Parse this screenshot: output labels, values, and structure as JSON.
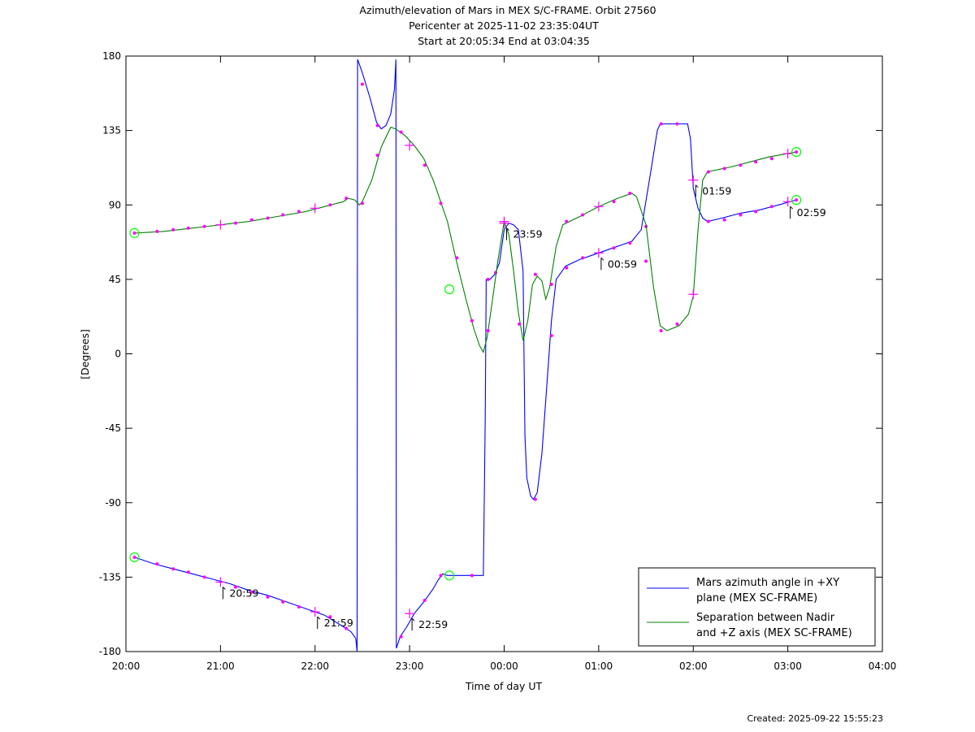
{
  "chart_data": {
    "type": "line",
    "title": [
      "Azimuth/elevation of Mars in MEX S/C-FRAME.  Orbit 27560",
      "Pericenter at 2025-11-02 23:35:04UT",
      "Start at 20:05:34 End at 03:04:35"
    ],
    "xlabel": "Time of day UT",
    "ylabel": "[Degrees]",
    "xlim": [
      20.0,
      28.0
    ],
    "ylim": [
      -180,
      180
    ],
    "x_ticks": [
      {
        "value": 20,
        "label": "20:00"
      },
      {
        "value": 21,
        "label": "21:00"
      },
      {
        "value": 22,
        "label": "22:00"
      },
      {
        "value": 23,
        "label": "23:00"
      },
      {
        "value": 24,
        "label": "00:00"
      },
      {
        "value": 25,
        "label": "01:00"
      },
      {
        "value": 26,
        "label": "02:00"
      },
      {
        "value": 27,
        "label": "03:00"
      },
      {
        "value": 28,
        "label": "04:00"
      }
    ],
    "y_ticks": [
      {
        "value": 180,
        "label": "180"
      },
      {
        "value": 135,
        "label": "135"
      },
      {
        "value": 90,
        "label": "90"
      },
      {
        "value": 45,
        "label": "45"
      },
      {
        "value": 0,
        "label": "0"
      },
      {
        "value": -45,
        "label": "-45"
      },
      {
        "value": -90,
        "label": "-90"
      },
      {
        "value": -135,
        "label": "-135"
      },
      {
        "value": -180,
        "label": "-180"
      }
    ],
    "legend_position": "bottom-right",
    "series": [
      {
        "name": "Mars azimuth angle in +XY plane (MEX SC-FRAME)",
        "legend_lines": [
          "Mars azimuth angle in +XY",
          "plane (MEX SC-FRAME)"
        ],
        "color": "#0000ff",
        "points": [
          [
            20.09,
            -123
          ],
          [
            20.3,
            -127
          ],
          [
            20.5,
            -130
          ],
          [
            20.7,
            -133
          ],
          [
            20.9,
            -136
          ],
          [
            21.1,
            -139
          ],
          [
            21.3,
            -143
          ],
          [
            21.5,
            -146
          ],
          [
            21.7,
            -150
          ],
          [
            21.9,
            -154
          ],
          [
            22.1,
            -158
          ],
          [
            22.3,
            -165
          ],
          [
            22.38,
            -168
          ],
          [
            22.43,
            -172
          ],
          [
            22.445,
            -180
          ],
          [
            22.45,
            178
          ],
          [
            22.5,
            170
          ],
          [
            22.58,
            155
          ],
          [
            22.65,
            140
          ],
          [
            22.7,
            136
          ],
          [
            22.75,
            138
          ],
          [
            22.8,
            145
          ],
          [
            22.84,
            160
          ],
          [
            22.855,
            178
          ],
          [
            22.86,
            -178
          ],
          [
            22.9,
            -171
          ],
          [
            22.97,
            -165
          ],
          [
            23.05,
            -157
          ],
          [
            23.15,
            -150
          ],
          [
            23.25,
            -142
          ],
          [
            23.3,
            -137
          ],
          [
            23.35,
            -133
          ],
          [
            23.4,
            -134
          ],
          [
            23.5,
            -134
          ],
          [
            23.6,
            -134
          ],
          [
            23.7,
            -134
          ],
          [
            23.78,
            -134
          ],
          [
            23.8,
            -40
          ],
          [
            23.81,
            45
          ],
          [
            23.85,
            45
          ],
          [
            23.9,
            48
          ],
          [
            23.95,
            55
          ],
          [
            24.0,
            75
          ],
          [
            24.05,
            79
          ],
          [
            24.1,
            78
          ],
          [
            24.15,
            75
          ],
          [
            24.2,
            50
          ],
          [
            24.21,
            0
          ],
          [
            24.22,
            -50
          ],
          [
            24.24,
            -75
          ],
          [
            24.28,
            -86
          ],
          [
            24.31,
            -88
          ],
          [
            24.35,
            -84
          ],
          [
            24.4,
            -60
          ],
          [
            24.45,
            -20
          ],
          [
            24.5,
            20
          ],
          [
            24.55,
            45
          ],
          [
            24.65,
            53
          ],
          [
            24.8,
            57
          ],
          [
            25.0,
            61
          ],
          [
            25.2,
            65
          ],
          [
            25.35,
            68
          ],
          [
            25.45,
            75
          ],
          [
            25.55,
            110
          ],
          [
            25.62,
            135
          ],
          [
            25.65,
            139
          ],
          [
            25.8,
            139
          ],
          [
            25.94,
            139
          ],
          [
            25.97,
            130
          ],
          [
            26.0,
            100
          ],
          [
            26.05,
            88
          ],
          [
            26.1,
            82
          ],
          [
            26.15,
            80
          ],
          [
            26.3,
            82
          ],
          [
            26.5,
            85
          ],
          [
            26.7,
            87
          ],
          [
            26.9,
            90
          ],
          [
            27.09,
            93
          ]
        ],
        "markers": [
          [
            20.09,
            -123
          ],
          [
            20.33,
            -127
          ],
          [
            20.5,
            -130
          ],
          [
            20.66,
            -132
          ],
          [
            20.83,
            -135
          ],
          [
            21.16,
            -141
          ],
          [
            21.33,
            -144
          ],
          [
            21.5,
            -147
          ],
          [
            21.66,
            -150
          ],
          [
            21.83,
            -153
          ],
          [
            22.16,
            -159
          ],
          [
            22.33,
            -166
          ],
          [
            22.5,
            163
          ],
          [
            22.66,
            138
          ],
          [
            22.91,
            -171
          ],
          [
            23.16,
            -149
          ],
          [
            23.33,
            -134
          ],
          [
            23.66,
            -134
          ],
          [
            23.83,
            45
          ],
          [
            23.91,
            49
          ],
          [
            24.33,
            -88
          ],
          [
            24.5,
            11
          ],
          [
            24.66,
            52
          ],
          [
            24.83,
            58
          ],
          [
            25.16,
            64
          ],
          [
            25.33,
            67
          ],
          [
            25.5,
            77
          ],
          [
            25.66,
            139
          ],
          [
            25.83,
            139
          ],
          [
            26.16,
            80
          ],
          [
            26.33,
            81
          ],
          [
            26.5,
            84
          ],
          [
            26.66,
            86
          ],
          [
            26.83,
            89
          ],
          [
            27.09,
            93
          ]
        ],
        "crosses": [
          [
            21.0,
            -138
          ],
          [
            22.0,
            -156
          ],
          [
            23.0,
            -157
          ],
          [
            24.0,
            79
          ],
          [
            25.0,
            61
          ],
          [
            26.0,
            105
          ],
          [
            27.0,
            92
          ]
        ],
        "circles": [
          [
            20.09,
            -123
          ],
          [
            23.42,
            -134
          ],
          [
            27.09,
            93
          ]
        ]
      },
      {
        "name": "Separation between Nadir and +Z axis (MEX SC-FRAME)",
        "legend_lines": [
          "Separation between Nadir",
          "and +Z axis (MEX SC-FRAME)"
        ],
        "color": "#008000",
        "points": [
          [
            20.09,
            73
          ],
          [
            20.4,
            74
          ],
          [
            20.7,
            76
          ],
          [
            21.0,
            78
          ],
          [
            21.3,
            80
          ],
          [
            21.6,
            83
          ],
          [
            21.9,
            86
          ],
          [
            22.1,
            89
          ],
          [
            22.3,
            92
          ],
          [
            22.35,
            94
          ],
          [
            22.42,
            93
          ],
          [
            22.47,
            90
          ],
          [
            22.5,
            92
          ],
          [
            22.6,
            105
          ],
          [
            22.7,
            125
          ],
          [
            22.8,
            137
          ],
          [
            22.85,
            136
          ],
          [
            22.95,
            132
          ],
          [
            23.05,
            126
          ],
          [
            23.15,
            118
          ],
          [
            23.25,
            105
          ],
          [
            23.4,
            80
          ],
          [
            23.5,
            55
          ],
          [
            23.6,
            32
          ],
          [
            23.68,
            15
          ],
          [
            23.74,
            5
          ],
          [
            23.78,
            1
          ],
          [
            23.82,
            10
          ],
          [
            23.87,
            30
          ],
          [
            23.93,
            55
          ],
          [
            24.0,
            80
          ],
          [
            24.05,
            72
          ],
          [
            24.1,
            50
          ],
          [
            24.15,
            25
          ],
          [
            24.2,
            8
          ],
          [
            24.25,
            20
          ],
          [
            24.3,
            42
          ],
          [
            24.35,
            47
          ],
          [
            24.4,
            44
          ],
          [
            24.44,
            33
          ],
          [
            24.48,
            40
          ],
          [
            24.55,
            65
          ],
          [
            24.62,
            78
          ],
          [
            24.8,
            83
          ],
          [
            25.0,
            89
          ],
          [
            25.2,
            94
          ],
          [
            25.35,
            97
          ],
          [
            25.4,
            95
          ],
          [
            25.5,
            78
          ],
          [
            25.58,
            40
          ],
          [
            25.65,
            17
          ],
          [
            25.72,
            14
          ],
          [
            25.85,
            17
          ],
          [
            25.95,
            24
          ],
          [
            26.0,
            35
          ],
          [
            26.05,
            75
          ],
          [
            26.1,
            105
          ],
          [
            26.15,
            110
          ],
          [
            26.4,
            113
          ],
          [
            26.6,
            116
          ],
          [
            26.8,
            119
          ],
          [
            27.09,
            122
          ]
        ],
        "markers": [
          [
            20.09,
            73
          ],
          [
            20.33,
            74
          ],
          [
            20.5,
            75
          ],
          [
            20.66,
            76
          ],
          [
            20.83,
            77
          ],
          [
            21.16,
            79
          ],
          [
            21.33,
            81
          ],
          [
            21.5,
            82
          ],
          [
            21.66,
            84
          ],
          [
            21.83,
            86
          ],
          [
            22.16,
            90
          ],
          [
            22.33,
            94
          ],
          [
            22.5,
            91
          ],
          [
            22.66,
            120
          ],
          [
            22.91,
            134
          ],
          [
            23.16,
            114
          ],
          [
            23.33,
            91
          ],
          [
            23.5,
            58
          ],
          [
            23.66,
            20
          ],
          [
            23.83,
            14
          ],
          [
            24.16,
            18
          ],
          [
            24.33,
            48
          ],
          [
            24.5,
            42
          ],
          [
            24.66,
            80
          ],
          [
            24.83,
            84
          ],
          [
            25.16,
            92
          ],
          [
            25.33,
            97
          ],
          [
            25.5,
            56
          ],
          [
            25.66,
            14
          ],
          [
            25.83,
            18
          ],
          [
            26.16,
            110
          ],
          [
            26.33,
            112
          ],
          [
            26.5,
            114
          ],
          [
            26.66,
            116
          ],
          [
            26.83,
            118
          ],
          [
            27.09,
            122
          ]
        ],
        "crosses": [
          [
            21.0,
            78
          ],
          [
            22.0,
            88
          ],
          [
            23.0,
            126
          ],
          [
            24.0,
            80
          ],
          [
            25.0,
            89
          ],
          [
            26.0,
            36
          ],
          [
            27.0,
            121
          ]
        ],
        "circles": [
          [
            20.09,
            73
          ],
          [
            23.42,
            39
          ],
          [
            27.09,
            122
          ]
        ]
      }
    ],
    "annotations": [
      {
        "x": 21.0,
        "y": -138,
        "label": "20:59"
      },
      {
        "x": 22.0,
        "y": -156,
        "label": "21:59"
      },
      {
        "x": 23.0,
        "y": -157,
        "label": "22:59"
      },
      {
        "x": 24.0,
        "y": 79,
        "label": "23:59"
      },
      {
        "x": 25.0,
        "y": 61,
        "label": "00:59"
      },
      {
        "x": 26.0,
        "y": 105,
        "label": "01:59"
      },
      {
        "x": 27.0,
        "y": 92,
        "label": "02:59"
      }
    ],
    "marker_color": "#ff00ff",
    "circle_color": "#00ff00"
  },
  "footer": {
    "created": "Created: 2025-09-22 15:55:23"
  }
}
